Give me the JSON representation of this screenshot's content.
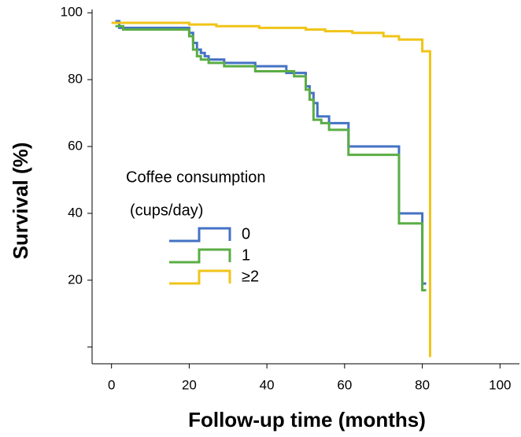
{
  "chart_data": {
    "type": "step",
    "x_label": "Follow-up time (months)",
    "y_label": "Survival (%)",
    "legend_title": [
      "Coffee consumption",
      "(cups/day)"
    ],
    "xlim": [
      -5,
      105
    ],
    "ylim": [
      -5,
      101
    ],
    "xticks": [
      0,
      20,
      40,
      60,
      80,
      100
    ],
    "yticks": [
      {
        "value": 0,
        "label": null
      },
      20,
      40,
      60,
      80,
      100
    ],
    "series": [
      {
        "name": "0",
        "color": "#4472c4",
        "x": [
          1,
          2,
          20,
          21,
          22,
          23,
          24,
          25,
          29,
          37,
          45,
          50,
          51,
          52,
          53,
          56,
          61,
          74,
          80,
          81
        ],
        "values": [
          97.5,
          95.5,
          94,
          91,
          89,
          88,
          87,
          86,
          85,
          84,
          82,
          78,
          76,
          73,
          69,
          67,
          60,
          40,
          19,
          19
        ]
      },
      {
        "name": "1",
        "color": "#5aad45",
        "x": [
          1,
          3,
          20,
          21,
          22,
          23,
          25,
          29,
          37,
          47,
          50,
          51,
          52,
          54,
          56,
          61,
          74,
          80,
          81
        ],
        "values": [
          96,
          95,
          93,
          89,
          87,
          86,
          85,
          84,
          82.5,
          81,
          77,
          74,
          68,
          67,
          65,
          57.5,
          37,
          17,
          17
        ]
      },
      {
        "name": "≥2",
        "color": "#f0c419",
        "x": [
          0,
          20,
          27,
          38,
          50,
          55,
          62,
          70,
          74,
          80,
          82
        ],
        "values": [
          97,
          96.5,
          96,
          95.5,
          95,
          94.5,
          94,
          93,
          92,
          88.5,
          -3
        ]
      }
    ]
  }
}
